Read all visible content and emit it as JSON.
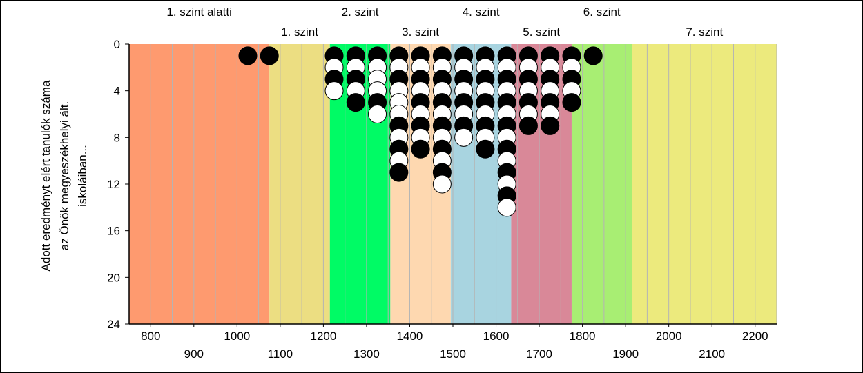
{
  "chart_data": {
    "type": "scatter",
    "title": "",
    "xlabel": "",
    "ylabel": "Adott eredményt elért tanulók száma az Önök megyeszékhelyi ált. iskoláiban...",
    "ylabel_lines": [
      "Adott eredményt elért tanulók száma",
      "az Önök megyeszékhelyi ált.",
      "iskoláiban..."
    ],
    "xlim": [
      750,
      2250
    ],
    "ylim": [
      0,
      24
    ],
    "y_inverted": true,
    "x_ticks_upper": [
      "800",
      "1000",
      "1200",
      "1400",
      "1600",
      "1800",
      "2000",
      "2200"
    ],
    "x_ticks_lower": [
      "900",
      "1100",
      "1300",
      "1500",
      "1700",
      "1900",
      "2100"
    ],
    "y_ticks": [
      "0",
      "4",
      "8",
      "12",
      "16",
      "20",
      "24"
    ],
    "levels": [
      {
        "label": "1. szint alatti",
        "from": 750,
        "to": 1075,
        "color": "#fe9a6f",
        "row": "top"
      },
      {
        "label": "1. szint",
        "from": 1075,
        "to": 1215,
        "color": "#ecde82",
        "row": "bottom"
      },
      {
        "label": "2. szint",
        "from": 1215,
        "to": 1355,
        "color": "#00fb65",
        "row": "top"
      },
      {
        "label": "3. szint",
        "from": 1355,
        "to": 1495,
        "color": "#fed8b0",
        "row": "bottom"
      },
      {
        "label": "4. szint",
        "from": 1495,
        "to": 1635,
        "color": "#a8d4e0",
        "row": "top"
      },
      {
        "label": "5. szint",
        "from": 1635,
        "to": 1775,
        "color": "#d98898",
        "row": "bottom"
      },
      {
        "label": "6. szint",
        "from": 1775,
        "to": 1915,
        "color": "#a8ee73",
        "row": "top"
      },
      {
        "label": "7. szint",
        "from": 1915,
        "to": 2250,
        "color": "#ecea7d",
        "row": "bottom"
      }
    ],
    "gridlines_x": [
      750,
      800,
      850,
      900,
      950,
      1000,
      1050,
      1100,
      1150,
      1200,
      1250,
      1300,
      1350,
      1400,
      1450,
      1500,
      1550,
      1600,
      1650,
      1700,
      1750,
      1800,
      1850,
      1900,
      1950,
      2000,
      2050,
      2100,
      2150,
      2200,
      2250
    ],
    "columns": [
      {
        "x": 1025,
        "dots": [
          "black"
        ]
      },
      {
        "x": 1075,
        "dots": [
          "black"
        ]
      },
      {
        "x": 1225,
        "dots": [
          "black",
          "white",
          "black",
          "white"
        ]
      },
      {
        "x": 1275,
        "dots": [
          "black",
          "white",
          "black",
          "white",
          "black"
        ]
      },
      {
        "x": 1325,
        "dots": [
          "black",
          "white",
          "white",
          "white",
          "black",
          "white"
        ]
      },
      {
        "x": 1375,
        "dots": [
          "black",
          "white",
          "black",
          "white",
          "white",
          "white",
          "black",
          "white",
          "black",
          "white",
          "black"
        ]
      },
      {
        "x": 1425,
        "dots": [
          "black",
          "white",
          "black",
          "white",
          "black",
          "white",
          "black",
          "white",
          "black"
        ]
      },
      {
        "x": 1475,
        "dots": [
          "black",
          "white",
          "black",
          "white",
          "black",
          "white",
          "black",
          "white",
          "black",
          "white",
          "black",
          "white"
        ]
      },
      {
        "x": 1525,
        "dots": [
          "black",
          "white",
          "black",
          "white",
          "black",
          "white",
          "black",
          "white"
        ]
      },
      {
        "x": 1575,
        "dots": [
          "black",
          "white",
          "black",
          "white",
          "black",
          "white",
          "black",
          "white",
          "black"
        ]
      },
      {
        "x": 1625,
        "dots": [
          "black",
          "white",
          "black",
          "white",
          "black",
          "white",
          "black",
          "white",
          "black",
          "white",
          "black",
          "white",
          "black",
          "white"
        ]
      },
      {
        "x": 1675,
        "dots": [
          "black",
          "white",
          "black",
          "white",
          "black",
          "white",
          "black"
        ]
      },
      {
        "x": 1725,
        "dots": [
          "black",
          "white",
          "black",
          "white",
          "black",
          "white",
          "black"
        ]
      },
      {
        "x": 1775,
        "dots": [
          "black",
          "white",
          "black",
          "white",
          "black"
        ]
      },
      {
        "x": 1825,
        "dots": [
          "black"
        ]
      }
    ],
    "colors": {
      "dot_black": "#000000",
      "dot_white": "#ffffff",
      "grid": "#b4b4b4",
      "axis": "#000000"
    }
  }
}
